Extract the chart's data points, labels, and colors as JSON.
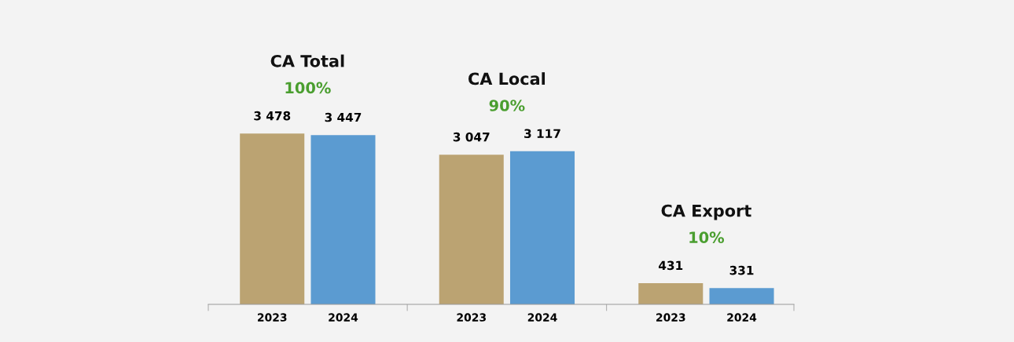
{
  "chart_data": {
    "type": "bar",
    "categories": [
      "2023",
      "2024",
      "2023",
      "2024",
      "2023",
      "2024"
    ],
    "values": [
      3478,
      3447,
      3047,
      3117,
      431,
      331
    ],
    "colors": [
      "#bba372",
      "#5b9bd1",
      "#bba372",
      "#5b9bd1",
      "#bba372",
      "#5b9bd1"
    ],
    "value_labels": [
      "3 478",
      "3 447",
      "3 047",
      "3 117",
      "431",
      "331"
    ],
    "annotations": [
      "CA Total",
      "100%",
      "CA Local",
      "90%",
      "CA Export",
      "10%"
    ],
    "grid": false,
    "legend": false
  }
}
